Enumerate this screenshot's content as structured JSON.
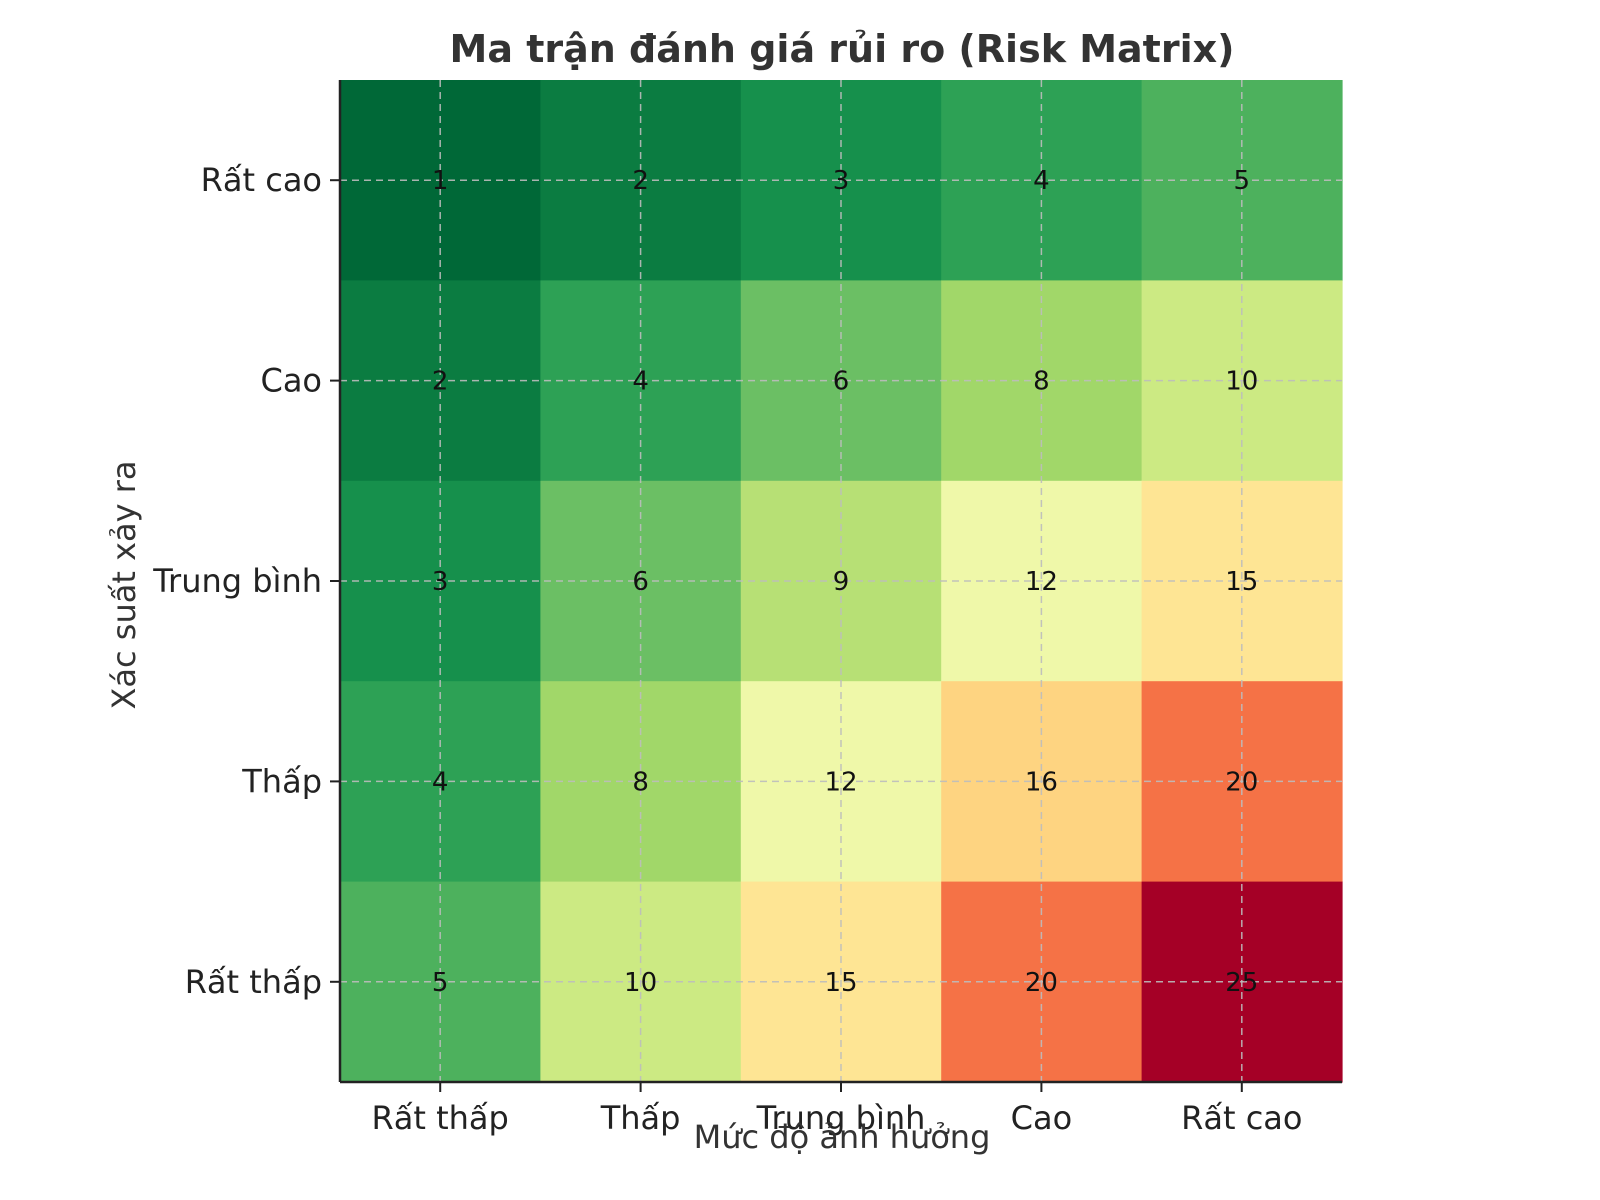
{
  "chart_data": {
    "type": "heatmap",
    "title": "Ma trận đánh giá rủi ro (Risk Matrix)",
    "xlabel": "Mức độ ảnh hưởng",
    "ylabel": "Xác suất xảy ra",
    "x_categories": [
      "Rất thấp",
      "Thấp",
      "Trung bình",
      "Cao",
      "Rất cao"
    ],
    "y_categories": [
      "Rất cao",
      "Cao",
      "Trung bình",
      "Thấp",
      "Rất thấp"
    ],
    "values": [
      [
        1,
        2,
        3,
        4,
        5
      ],
      [
        2,
        4,
        6,
        8,
        10
      ],
      [
        3,
        6,
        9,
        12,
        15
      ],
      [
        4,
        8,
        12,
        16,
        20
      ],
      [
        5,
        10,
        15,
        20,
        25
      ]
    ],
    "value_range": [
      1,
      25
    ],
    "colormap": "RdYlGn_r",
    "annotations": "cell values shown",
    "grid": true
  }
}
